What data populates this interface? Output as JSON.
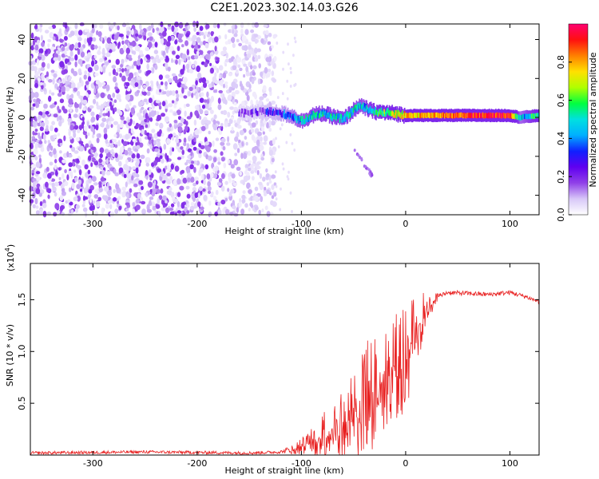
{
  "title": "C2E1.2023.302.14.03.G26",
  "chart_data": [
    {
      "type": "heatmap",
      "xlabel": "Height of straight line (km)",
      "ylabel": "Frequency (Hz)",
      "xlim": [
        -360,
        128
      ],
      "ylim": [
        -50,
        48
      ],
      "xticks": [
        -300,
        -200,
        -100,
        0,
        100
      ],
      "yticks": [
        -40,
        -20,
        0,
        20,
        40
      ],
      "grid": false,
      "colorbar": {
        "label": "Normalized spectral amplitude",
        "range": [
          0.0,
          1.0
        ],
        "ticks": [
          "0.0",
          "0.2",
          "0.4",
          "0.6",
          "0.8"
        ],
        "colormap": [
          "#ffffff",
          "#d8c8f8",
          "#9040e8",
          "#6000f0",
          "#1020ff",
          "#00b0ff",
          "#00e0e0",
          "#00ff40",
          "#b0ff00",
          "#ffe000",
          "#ff8000",
          "#ff1010",
          "#ff0070"
        ]
      },
      "features": {
        "noise_region_x": [
          -360,
          -125
        ],
        "noise_level": 0.15,
        "trace_x": [
          -160,
          128
        ],
        "trace_frequency_hz": [
          [
            -160,
            2
          ],
          [
            -130,
            3
          ],
          [
            -110,
            1
          ],
          [
            -100,
            -2
          ],
          [
            -90,
            1
          ],
          [
            -80,
            2
          ],
          [
            -60,
            -1
          ],
          [
            -45,
            6
          ],
          [
            -30,
            3
          ],
          [
            -10,
            2
          ],
          [
            0,
            1
          ],
          [
            30,
            1
          ],
          [
            60,
            1
          ],
          [
            100,
            1
          ],
          [
            110,
            0
          ],
          [
            128,
            1
          ]
        ],
        "trace_amplitude": [
          [
            -160,
            0.15
          ],
          [
            -120,
            0.3
          ],
          [
            -100,
            0.45
          ],
          [
            -60,
            0.5
          ],
          [
            -40,
            0.45
          ],
          [
            0,
            0.75
          ],
          [
            40,
            0.85
          ],
          [
            100,
            0.95
          ],
          [
            110,
            0.4
          ],
          [
            128,
            0.6
          ]
        ],
        "secondary_trace": [
          [
            -50,
            -16
          ],
          [
            -40,
            -24
          ],
          [
            -32,
            -30
          ]
        ]
      }
    },
    {
      "type": "line",
      "xlabel": "Height of straight line (km)",
      "ylabel": "SNR (10 * v/v)",
      "y_multiplier": "(x10",
      "y_multiplier_exp": "4",
      "xlim": [
        -360,
        128
      ],
      "ylim": [
        0,
        1.85
      ],
      "xticks": [
        -300,
        -200,
        -100,
        0,
        100
      ],
      "yticks": [
        "0.5",
        "1.0",
        "1.5"
      ],
      "grid": false,
      "series": [
        {
          "color": "#e82020",
          "envelope": [
            [
              -360,
              0.02
            ],
            [
              -250,
              0.03
            ],
            [
              -150,
              0.02
            ],
            [
              -120,
              0.03
            ],
            [
              -100,
              0.08
            ],
            [
              -80,
              0.15
            ],
            [
              -70,
              0.25
            ],
            [
              -60,
              0.3
            ],
            [
              -50,
              0.4
            ],
            [
              -40,
              0.5
            ],
            [
              -30,
              0.6
            ],
            [
              -20,
              0.7
            ],
            [
              -10,
              0.85
            ],
            [
              0,
              0.95
            ],
            [
              10,
              1.2
            ],
            [
              20,
              1.4
            ],
            [
              30,
              1.52
            ],
            [
              40,
              1.57
            ],
            [
              60,
              1.56
            ],
            [
              80,
              1.55
            ],
            [
              100,
              1.57
            ],
            [
              115,
              1.53
            ],
            [
              128,
              1.48
            ]
          ],
          "noise_amplitude": [
            [
              -360,
              0.02
            ],
            [
              -120,
              0.02
            ],
            [
              -100,
              0.08
            ],
            [
              -80,
              0.25
            ],
            [
              -60,
              0.4
            ],
            [
              -40,
              0.6
            ],
            [
              -20,
              0.5
            ],
            [
              0,
              0.55
            ],
            [
              10,
              0.35
            ],
            [
              25,
              0.1
            ],
            [
              35,
              0.03
            ],
            [
              128,
              0.03
            ]
          ]
        }
      ]
    }
  ]
}
